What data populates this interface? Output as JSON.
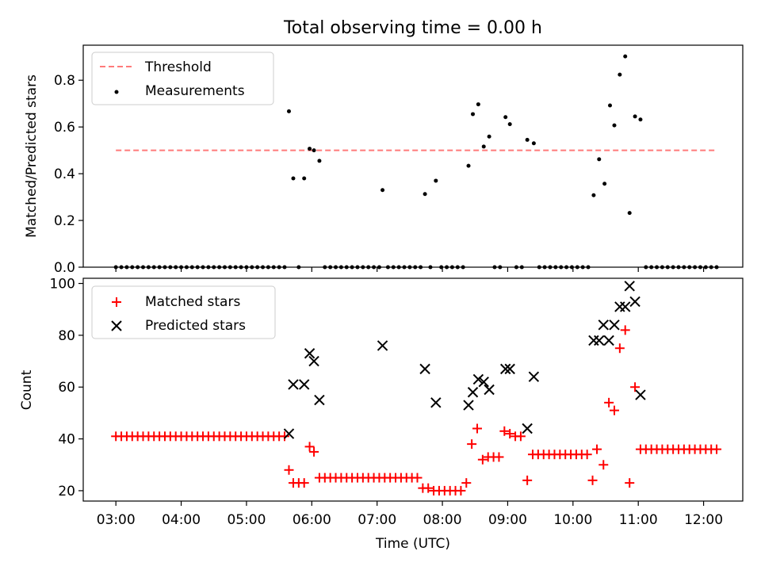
{
  "chart_data": [
    {
      "type": "scatter",
      "title": "Total observing time = 0.00 h",
      "ylabel": "Matched/Predicted stars",
      "xlim": [
        "02:30",
        "12:36"
      ],
      "ylim": [
        0,
        0.95
      ],
      "yticks": [
        "0.0",
        "0.2",
        "0.4",
        "0.6",
        "0.8"
      ],
      "legend": "top-left",
      "threshold": {
        "name": "Threshold",
        "value": 0.5,
        "x": [
          "03:00",
          "12:10"
        ],
        "color": "#ff7a7a",
        "style": "dashed"
      },
      "series": [
        {
          "name": "Measurements",
          "color": "#000000",
          "marker": "dot",
          "points": [
            [
              "03:00",
              0
            ],
            [
              "03:05",
              0
            ],
            [
              "03:10",
              0
            ],
            [
              "03:15",
              0
            ],
            [
              "03:20",
              0
            ],
            [
              "03:25",
              0
            ],
            [
              "03:30",
              0
            ],
            [
              "03:35",
              0
            ],
            [
              "03:40",
              0
            ],
            [
              "03:45",
              0
            ],
            [
              "03:50",
              0
            ],
            [
              "03:55",
              0
            ],
            [
              "04:00",
              0
            ],
            [
              "04:05",
              0
            ],
            [
              "04:10",
              0
            ],
            [
              "04:15",
              0
            ],
            [
              "04:20",
              0
            ],
            [
              "04:25",
              0
            ],
            [
              "04:30",
              0
            ],
            [
              "04:35",
              0
            ],
            [
              "04:40",
              0
            ],
            [
              "04:45",
              0
            ],
            [
              "04:50",
              0
            ],
            [
              "04:55",
              0
            ],
            [
              "05:00",
              0
            ],
            [
              "05:05",
              0
            ],
            [
              "05:10",
              0
            ],
            [
              "05:15",
              0
            ],
            [
              "05:20",
              0
            ],
            [
              "05:25",
              0
            ],
            [
              "05:30",
              0
            ],
            [
              "05:35",
              0
            ],
            [
              "05:39",
              0.667
            ],
            [
              "05:43",
              0.38
            ],
            [
              "05:48",
              0
            ],
            [
              "05:53",
              0.38
            ],
            [
              "05:58",
              0.507
            ],
            [
              "06:02",
              0.5
            ],
            [
              "06:07",
              0.455
            ],
            [
              "06:12",
              0
            ],
            [
              "06:17",
              0
            ],
            [
              "06:22",
              0
            ],
            [
              "06:27",
              0
            ],
            [
              "06:32",
              0
            ],
            [
              "06:37",
              0
            ],
            [
              "06:42",
              0
            ],
            [
              "06:47",
              0
            ],
            [
              "06:52",
              0
            ],
            [
              "06:57",
              0
            ],
            [
              "07:02",
              0
            ],
            [
              "07:05",
              0.33
            ],
            [
              "07:10",
              0
            ],
            [
              "07:15",
              0
            ],
            [
              "07:20",
              0
            ],
            [
              "07:25",
              0
            ],
            [
              "07:30",
              0
            ],
            [
              "07:35",
              0
            ],
            [
              "07:40",
              0
            ],
            [
              "07:44",
              0.313
            ],
            [
              "07:49",
              0
            ],
            [
              "07:54",
              0.37
            ],
            [
              "07:59",
              0
            ],
            [
              "08:04",
              0
            ],
            [
              "08:09",
              0
            ],
            [
              "08:14",
              0
            ],
            [
              "08:19",
              0
            ],
            [
              "08:24",
              0.434
            ],
            [
              "08:28",
              0.655
            ],
            [
              "08:33",
              0.697
            ],
            [
              "08:38",
              0.516
            ],
            [
              "08:43",
              0.559
            ],
            [
              "08:48",
              0
            ],
            [
              "08:53",
              0
            ],
            [
              "08:58",
              0.642
            ],
            [
              "09:02",
              0.612
            ],
            [
              "09:08",
              0
            ],
            [
              "09:13",
              0
            ],
            [
              "09:18",
              0.545
            ],
            [
              "09:24",
              0.53
            ],
            [
              "09:29",
              0
            ],
            [
              "09:34",
              0
            ],
            [
              "09:39",
              0
            ],
            [
              "09:44",
              0
            ],
            [
              "09:49",
              0
            ],
            [
              "09:54",
              0
            ],
            [
              "09:59",
              0
            ],
            [
              "10:04",
              0
            ],
            [
              "10:09",
              0
            ],
            [
              "10:14",
              0
            ],
            [
              "10:19",
              0.308
            ],
            [
              "10:24",
              0.462
            ],
            [
              "10:29",
              0.357
            ],
            [
              "10:34",
              0.692
            ],
            [
              "10:38",
              0.607
            ],
            [
              "10:43",
              0.824
            ],
            [
              "10:48",
              0.902
            ],
            [
              "10:52",
              0.232
            ],
            [
              "10:57",
              0.645
            ],
            [
              "11:02",
              0.632
            ],
            [
              "11:07",
              0
            ],
            [
              "11:12",
              0
            ],
            [
              "11:17",
              0
            ],
            [
              "11:22",
              0
            ],
            [
              "11:27",
              0
            ],
            [
              "11:32",
              0
            ],
            [
              "11:37",
              0
            ],
            [
              "11:42",
              0
            ],
            [
              "11:47",
              0
            ],
            [
              "11:52",
              0
            ],
            [
              "11:57",
              0
            ],
            [
              "12:02",
              0
            ],
            [
              "12:07",
              0
            ],
            [
              "12:12",
              0
            ]
          ]
        }
      ]
    },
    {
      "type": "scatter",
      "xlabel": "Time (UTC)",
      "ylabel": "Count",
      "xlim": [
        "02:30",
        "12:36"
      ],
      "ylim": [
        16,
        102
      ],
      "xticks": [
        "03:00",
        "04:00",
        "05:00",
        "06:00",
        "07:00",
        "08:00",
        "09:00",
        "10:00",
        "11:00",
        "12:00"
      ],
      "yticks": [
        "20",
        "40",
        "60",
        "80",
        "100"
      ],
      "legend": "top-left",
      "series": [
        {
          "name": "Matched stars",
          "color": "#ff0000",
          "marker": "plus",
          "points": [
            [
              "03:00",
              41
            ],
            [
              "03:05",
              41
            ],
            [
              "03:10",
              41
            ],
            [
              "03:15",
              41
            ],
            [
              "03:20",
              41
            ],
            [
              "03:25",
              41
            ],
            [
              "03:30",
              41
            ],
            [
              "03:35",
              41
            ],
            [
              "03:40",
              41
            ],
            [
              "03:45",
              41
            ],
            [
              "03:50",
              41
            ],
            [
              "03:55",
              41
            ],
            [
              "04:00",
              41
            ],
            [
              "04:05",
              41
            ],
            [
              "04:10",
              41
            ],
            [
              "04:15",
              41
            ],
            [
              "04:20",
              41
            ],
            [
              "04:25",
              41
            ],
            [
              "04:30",
              41
            ],
            [
              "04:35",
              41
            ],
            [
              "04:40",
              41
            ],
            [
              "04:45",
              41
            ],
            [
              "04:50",
              41
            ],
            [
              "04:55",
              41
            ],
            [
              "05:00",
              41
            ],
            [
              "05:05",
              41
            ],
            [
              "05:10",
              41
            ],
            [
              "05:15",
              41
            ],
            [
              "05:20",
              41
            ],
            [
              "05:25",
              41
            ],
            [
              "05:30",
              41
            ],
            [
              "05:35",
              41
            ],
            [
              "05:39",
              28
            ],
            [
              "05:43",
              23
            ],
            [
              "05:48",
              23
            ],
            [
              "05:53",
              23
            ],
            [
              "05:58",
              37
            ],
            [
              "06:02",
              35
            ],
            [
              "06:07",
              25
            ],
            [
              "06:12",
              25
            ],
            [
              "06:17",
              25
            ],
            [
              "06:22",
              25
            ],
            [
              "06:27",
              25
            ],
            [
              "06:32",
              25
            ],
            [
              "06:37",
              25
            ],
            [
              "06:42",
              25
            ],
            [
              "06:47",
              25
            ],
            [
              "06:52",
              25
            ],
            [
              "06:57",
              25
            ],
            [
              "07:02",
              25
            ],
            [
              "07:07",
              25
            ],
            [
              "07:12",
              25
            ],
            [
              "07:17",
              25
            ],
            [
              "07:22",
              25
            ],
            [
              "07:27",
              25
            ],
            [
              "07:32",
              25
            ],
            [
              "07:37",
              25
            ],
            [
              "07:42",
              21
            ],
            [
              "07:47",
              21
            ],
            [
              "07:52",
              20
            ],
            [
              "07:57",
              20
            ],
            [
              "08:02",
              20
            ],
            [
              "08:07",
              20
            ],
            [
              "08:12",
              20
            ],
            [
              "08:17",
              20
            ],
            [
              "08:22",
              23
            ],
            [
              "08:27",
              38
            ],
            [
              "08:32",
              44
            ],
            [
              "08:37",
              32
            ],
            [
              "08:42",
              33
            ],
            [
              "08:47",
              33
            ],
            [
              "08:52",
              33
            ],
            [
              "08:57",
              43
            ],
            [
              "09:02",
              42
            ],
            [
              "09:07",
              41
            ],
            [
              "09:12",
              41
            ],
            [
              "09:18",
              24
            ],
            [
              "09:23",
              34
            ],
            [
              "09:28",
              34
            ],
            [
              "09:33",
              34
            ],
            [
              "09:38",
              34
            ],
            [
              "09:43",
              34
            ],
            [
              "09:48",
              34
            ],
            [
              "09:53",
              34
            ],
            [
              "09:58",
              34
            ],
            [
              "10:03",
              34
            ],
            [
              "10:08",
              34
            ],
            [
              "10:13",
              34
            ],
            [
              "10:18",
              24
            ],
            [
              "10:22",
              36
            ],
            [
              "10:28",
              30
            ],
            [
              "10:33",
              54
            ],
            [
              "10:38",
              51
            ],
            [
              "10:43",
              75
            ],
            [
              "10:48",
              82
            ],
            [
              "10:52",
              23
            ],
            [
              "10:57",
              60
            ],
            [
              "11:02",
              36
            ],
            [
              "11:07",
              36
            ],
            [
              "11:12",
              36
            ],
            [
              "11:17",
              36
            ],
            [
              "11:22",
              36
            ],
            [
              "11:27",
              36
            ],
            [
              "11:32",
              36
            ],
            [
              "11:37",
              36
            ],
            [
              "11:42",
              36
            ],
            [
              "11:47",
              36
            ],
            [
              "11:52",
              36
            ],
            [
              "11:57",
              36
            ],
            [
              "12:02",
              36
            ],
            [
              "12:07",
              36
            ],
            [
              "12:12",
              36
            ]
          ]
        },
        {
          "name": "Predicted stars",
          "color": "#000000",
          "marker": "x",
          "points": [
            [
              "05:39",
              42
            ],
            [
              "05:43",
              61
            ],
            [
              "05:53",
              61
            ],
            [
              "05:58",
              73
            ],
            [
              "06:02",
              70
            ],
            [
              "06:07",
              55
            ],
            [
              "07:05",
              76
            ],
            [
              "07:44",
              67
            ],
            [
              "07:54",
              54
            ],
            [
              "08:24",
              53
            ],
            [
              "08:28",
              58
            ],
            [
              "08:33",
              63
            ],
            [
              "08:38",
              62
            ],
            [
              "08:43",
              59
            ],
            [
              "08:58",
              67
            ],
            [
              "09:02",
              67
            ],
            [
              "09:18",
              44
            ],
            [
              "09:24",
              64
            ],
            [
              "10:19",
              78
            ],
            [
              "10:24",
              78
            ],
            [
              "10:28",
              84
            ],
            [
              "10:33",
              78
            ],
            [
              "10:38",
              84
            ],
            [
              "10:43",
              91
            ],
            [
              "10:48",
              91
            ],
            [
              "10:52",
              99
            ],
            [
              "10:57",
              93
            ],
            [
              "11:02",
              57
            ]
          ]
        }
      ]
    }
  ]
}
